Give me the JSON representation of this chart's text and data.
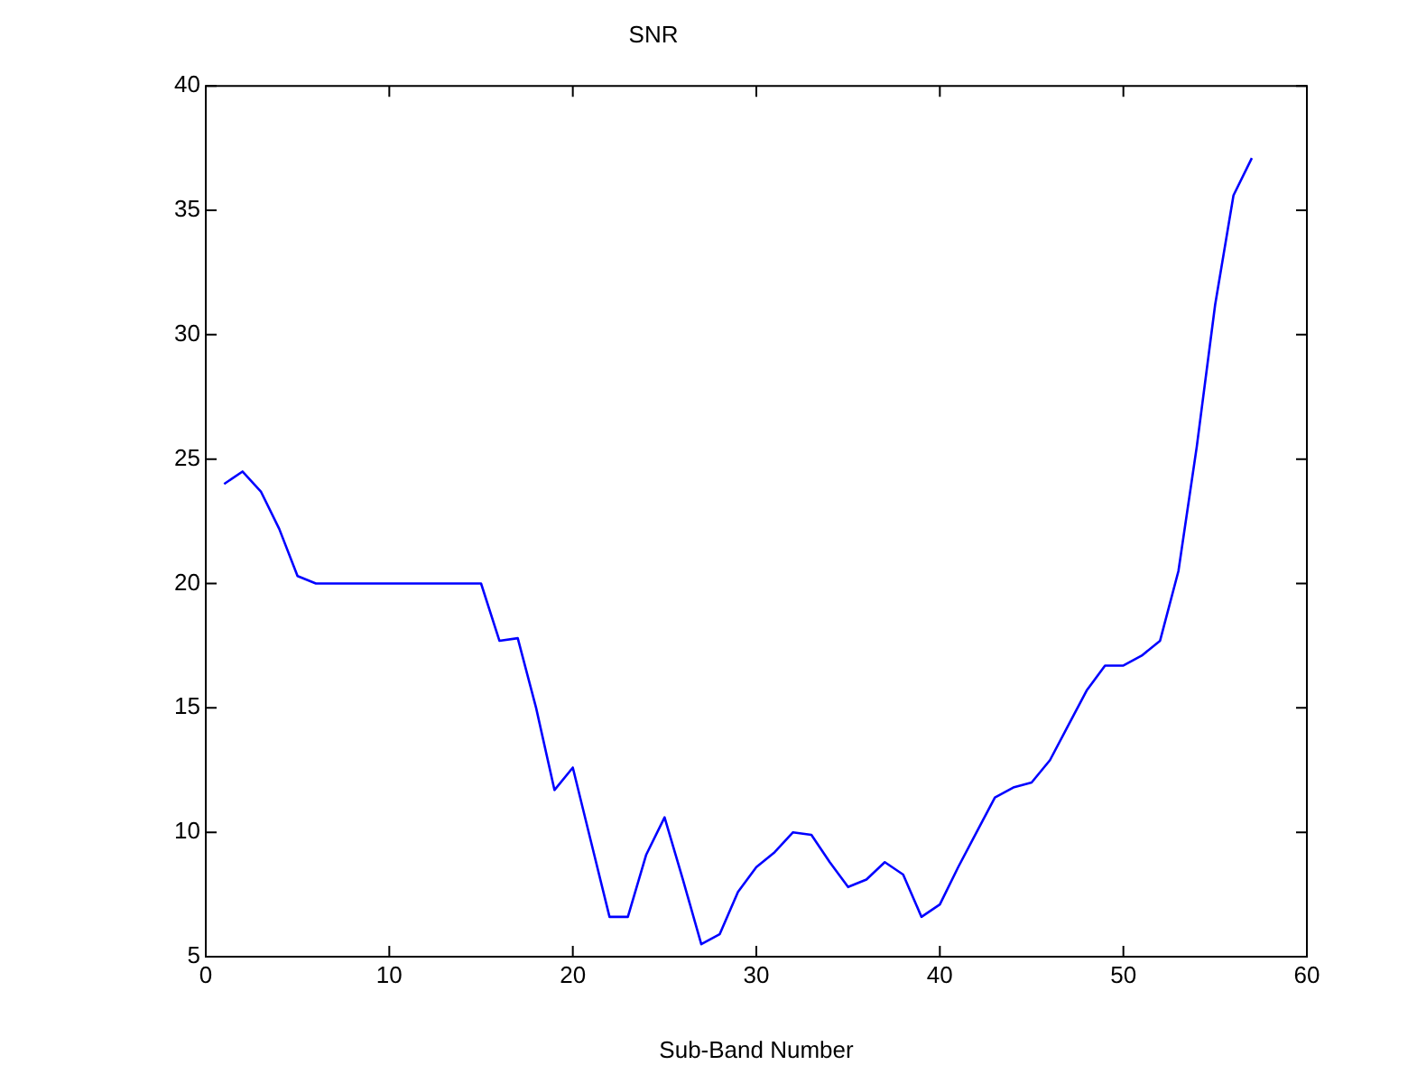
{
  "chart_data": {
    "type": "line",
    "title": "SNR",
    "xlabel": "Sub-Band Number",
    "x": [
      1,
      2,
      3,
      4,
      5,
      6,
      7,
      8,
      9,
      10,
      11,
      12,
      13,
      14,
      15,
      16,
      17,
      18,
      19,
      20,
      21,
      22,
      23,
      24,
      25,
      26,
      27,
      28,
      29,
      30,
      31,
      32,
      33,
      34,
      35,
      36,
      37,
      38,
      39,
      40,
      41,
      42,
      43,
      44,
      45,
      46,
      47,
      48,
      49,
      50,
      51,
      52,
      53,
      54,
      55,
      56,
      57
    ],
    "series": [
      {
        "color": "#0000ff",
        "values": [
          24,
          24.5,
          23.7,
          22.2,
          20.3,
          20,
          20,
          20,
          20,
          20,
          20,
          20,
          20,
          20,
          20,
          17.7,
          17.8,
          15,
          11.7,
          12.6,
          9.6,
          6.6,
          6.6,
          9.1,
          10.6,
          8.1,
          5.5,
          5.9,
          7.6,
          8.6,
          9.2,
          10,
          9.9,
          8.8,
          7.8,
          8.1,
          8.8,
          8.3,
          6.6,
          7.1,
          8.6,
          10,
          11.4,
          11.8,
          12,
          12.9,
          14.3,
          15.7,
          16.7,
          16.7,
          17.1,
          17.7,
          20.5,
          25.5,
          31.2,
          35.6,
          37.1
        ]
      }
    ],
    "xlim": [
      0,
      60
    ],
    "xticks": [
      0,
      10,
      20,
      30,
      40,
      50,
      60
    ],
    "ylim": [
      5,
      40
    ],
    "yticks": [
      5,
      10,
      15,
      20,
      25,
      30,
      35,
      40
    ],
    "grid": false,
    "legend": false,
    "marker": "none",
    "line_style": "solid"
  }
}
